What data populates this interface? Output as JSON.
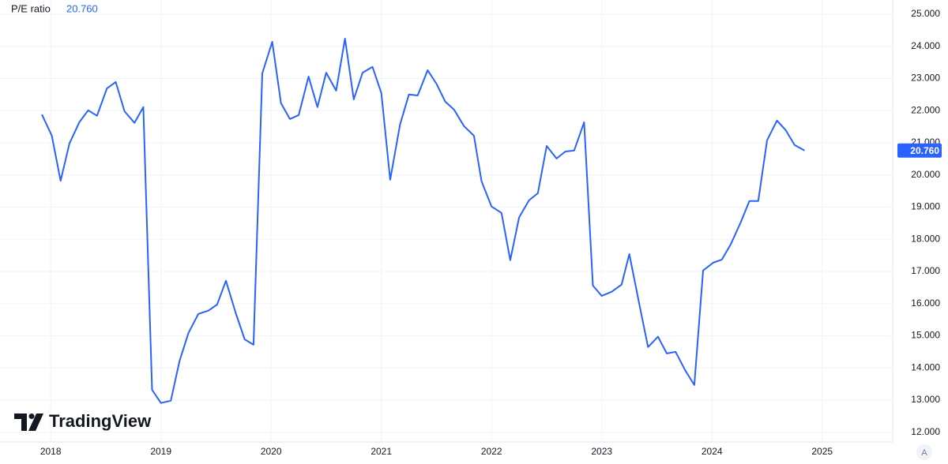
{
  "chart_data": {
    "type": "line",
    "watermark": "TradingView",
    "auto_button": "A",
    "current": {
      "value": 20.76,
      "label": "20.760"
    },
    "x": [
      2017.92,
      2018.01,
      2018.09,
      2018.17,
      2018.26,
      2018.34,
      2018.42,
      2018.51,
      2018.59,
      2018.67,
      2018.76,
      2018.84,
      2018.92,
      2019.0,
      2019.09,
      2019.17,
      2019.25,
      2019.34,
      2019.43,
      2019.51,
      2019.59,
      2019.68,
      2019.76,
      2019.84,
      2019.92,
      2020.01,
      2020.09,
      2020.17,
      2020.25,
      2020.34,
      2020.42,
      2020.5,
      2020.59,
      2020.67,
      2020.75,
      2020.83,
      2020.92,
      2021.0,
      2021.08,
      2021.17,
      2021.25,
      2021.33,
      2021.42,
      2021.5,
      2021.58,
      2021.66,
      2021.75,
      2021.84,
      2021.91,
      2022.0,
      2022.09,
      2022.17,
      2022.25,
      2022.34,
      2022.42,
      2022.5,
      2022.59,
      2022.67,
      2022.75,
      2022.84,
      2022.92,
      2023.0,
      2023.09,
      2023.18,
      2023.25,
      2023.34,
      2023.42,
      2023.51,
      2023.59,
      2023.67,
      2023.76,
      2023.84,
      2023.92,
      2024.01,
      2024.09,
      2024.17,
      2024.26,
      2024.34,
      2024.42,
      2024.5,
      2024.59,
      2024.67,
      2024.75,
      2024.84
    ],
    "series": [
      {
        "name": "P/E ratio",
        "color": "#2962ff",
        "values": [
          21.88,
          21.22,
          19.82,
          20.98,
          21.64,
          22.01,
          21.84,
          22.69,
          22.89,
          21.98,
          21.62,
          22.11,
          13.32,
          12.91,
          12.98,
          14.23,
          15.09,
          15.68,
          15.78,
          15.97,
          16.71,
          15.7,
          14.89,
          14.72,
          23.16,
          24.14,
          22.23,
          21.74,
          21.86,
          23.06,
          22.11,
          23.18,
          22.62,
          24.24,
          22.35,
          23.18,
          23.36,
          22.55,
          19.85,
          21.57,
          22.5,
          22.47,
          23.26,
          22.84,
          22.28,
          22.03,
          21.52,
          21.22,
          19.8,
          19.02,
          18.82,
          17.35,
          18.68,
          19.21,
          19.43,
          20.9,
          20.51,
          20.73,
          20.76,
          21.64,
          16.56,
          16.24,
          16.37,
          16.59,
          17.54,
          16.0,
          14.65,
          14.97,
          14.45,
          14.5,
          13.91,
          13.47,
          17.03,
          17.27,
          17.37,
          17.84,
          18.52,
          19.19,
          19.19,
          21.08,
          21.69,
          21.39,
          20.93,
          20.76
        ]
      }
    ],
    "xlim": [
      2017.54,
      2025.64
    ],
    "xticks": [
      2018,
      2019,
      2020,
      2021,
      2022,
      2023,
      2024,
      2025
    ],
    "ylim": [
      11.7,
      25.44
    ],
    "yticks": [
      {
        "value": 12,
        "label": "12.000"
      },
      {
        "value": 13,
        "label": "13.000"
      },
      {
        "value": 14,
        "label": "14.000"
      },
      {
        "value": 15,
        "label": "15.000"
      },
      {
        "value": 16,
        "label": "16.000"
      },
      {
        "value": 17,
        "label": "17.000"
      },
      {
        "value": 18,
        "label": "18.000"
      },
      {
        "value": 19,
        "label": "19.000"
      },
      {
        "value": 20,
        "label": "20.000"
      },
      {
        "value": 21,
        "label": "21.000"
      },
      {
        "value": 22,
        "label": "22.000"
      },
      {
        "value": 23,
        "label": "23.000"
      },
      {
        "value": 24,
        "label": "24.000"
      },
      {
        "value": 25,
        "label": "25.000"
      }
    ],
    "grid": true
  }
}
